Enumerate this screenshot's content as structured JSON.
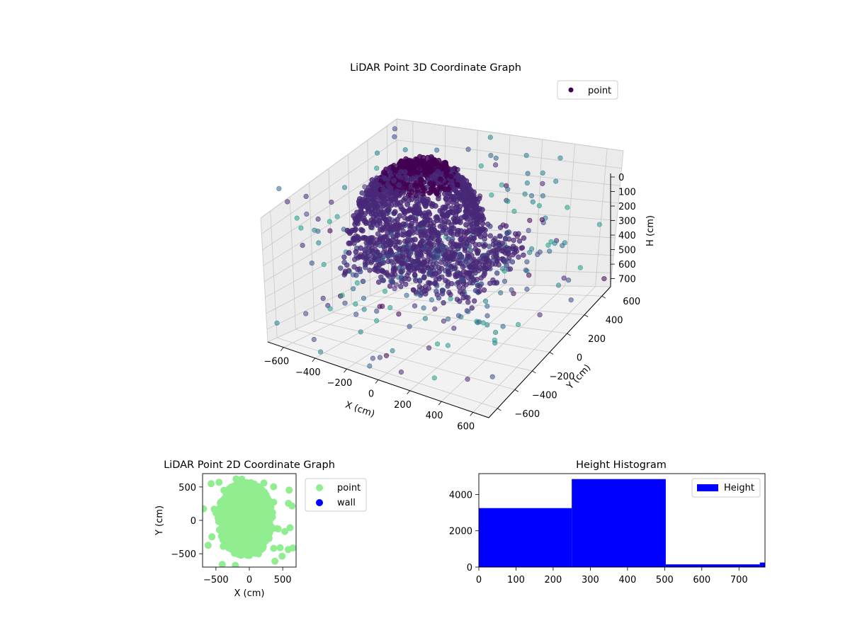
{
  "chart_data": [
    {
      "type": "scatter",
      "projection": "3d",
      "title": "LiDAR Point 3D Coordinate Graph",
      "xlabel": "X (cm)",
      "ylabel": "Y (cm)",
      "zlabel": "H (cm)",
      "xlim": [
        -700,
        700
      ],
      "ylim": [
        -700,
        700
      ],
      "zlim": [
        0,
        780
      ],
      "z_inverted": true,
      "xticks": [
        "−600",
        "−400",
        "−200",
        "0",
        "200",
        "400",
        "600"
      ],
      "yticks": [
        "−600",
        "−400",
        "−200",
        "0",
        "200",
        "400",
        "600"
      ],
      "zticks": [
        "0",
        "100",
        "200",
        "300",
        "400",
        "500",
        "600",
        "700"
      ],
      "grid": true,
      "legend": {
        "position": "top-right",
        "entries": [
          {
            "label": "point",
            "color": "#440154"
          }
        ]
      },
      "colormap": "viridis",
      "point_groups": [
        {
          "description": "dense dome",
          "count_estimate": 3000,
          "x_range": [
            -550,
            200
          ],
          "y_range": [
            -350,
            450
          ],
          "h_range": [
            0,
            420
          ]
        },
        {
          "description": "lower dense band",
          "count_estimate": 1500,
          "x_range": [
            -500,
            350
          ],
          "y_range": [
            -300,
            400
          ],
          "h_range": [
            380,
            520
          ]
        },
        {
          "description": "outer scattered points",
          "count_estimate": 400,
          "x_range": [
            -700,
            700
          ],
          "y_range": [
            -700,
            700
          ],
          "h_range": [
            0,
            780
          ]
        }
      ]
    },
    {
      "type": "scatter",
      "title": "LiDAR Point 2D Coordinate Graph",
      "xlabel": "X (cm)",
      "ylabel": "Y (cm)",
      "xlim": [
        -700,
        700
      ],
      "ylim": [
        -700,
        700
      ],
      "xticks": [
        "−500",
        "0",
        "500"
      ],
      "yticks": [
        "−500",
        "0",
        "500"
      ],
      "legend": {
        "position": "outside-right",
        "entries": [
          {
            "label": "point",
            "color": "#90ee90"
          },
          {
            "label": "wall",
            "color": "#0000ff"
          }
        ]
      },
      "series": [
        {
          "name": "point",
          "color": "#90ee90",
          "blob": {
            "center": [
              -60,
              20
            ],
            "rx": 420,
            "ry": 560
          }
        },
        {
          "name": "wall",
          "color": "#0000ff",
          "points": []
        }
      ]
    },
    {
      "type": "bar",
      "histogram": true,
      "title": "Height Histogram",
      "xlabel": "",
      "ylabel": "",
      "xlim": [
        0,
        770
      ],
      "ylim": [
        0,
        5150
      ],
      "xticks": [
        "0",
        "100",
        "200",
        "300",
        "400",
        "500",
        "600",
        "700"
      ],
      "yticks": [
        "0",
        "2000",
        "4000"
      ],
      "color": "#0000ff",
      "legend": {
        "position": "top-right",
        "entries": [
          {
            "label": "Height",
            "color": "#0000ff"
          }
        ]
      },
      "bins": [
        {
          "start": 0,
          "end": 250,
          "value": 3250
        },
        {
          "start": 250,
          "end": 503,
          "value": 4850
        },
        {
          "start": 503,
          "end": 756,
          "value": 150
        },
        {
          "start": 756,
          "end": 770,
          "value": 250
        }
      ]
    }
  ]
}
